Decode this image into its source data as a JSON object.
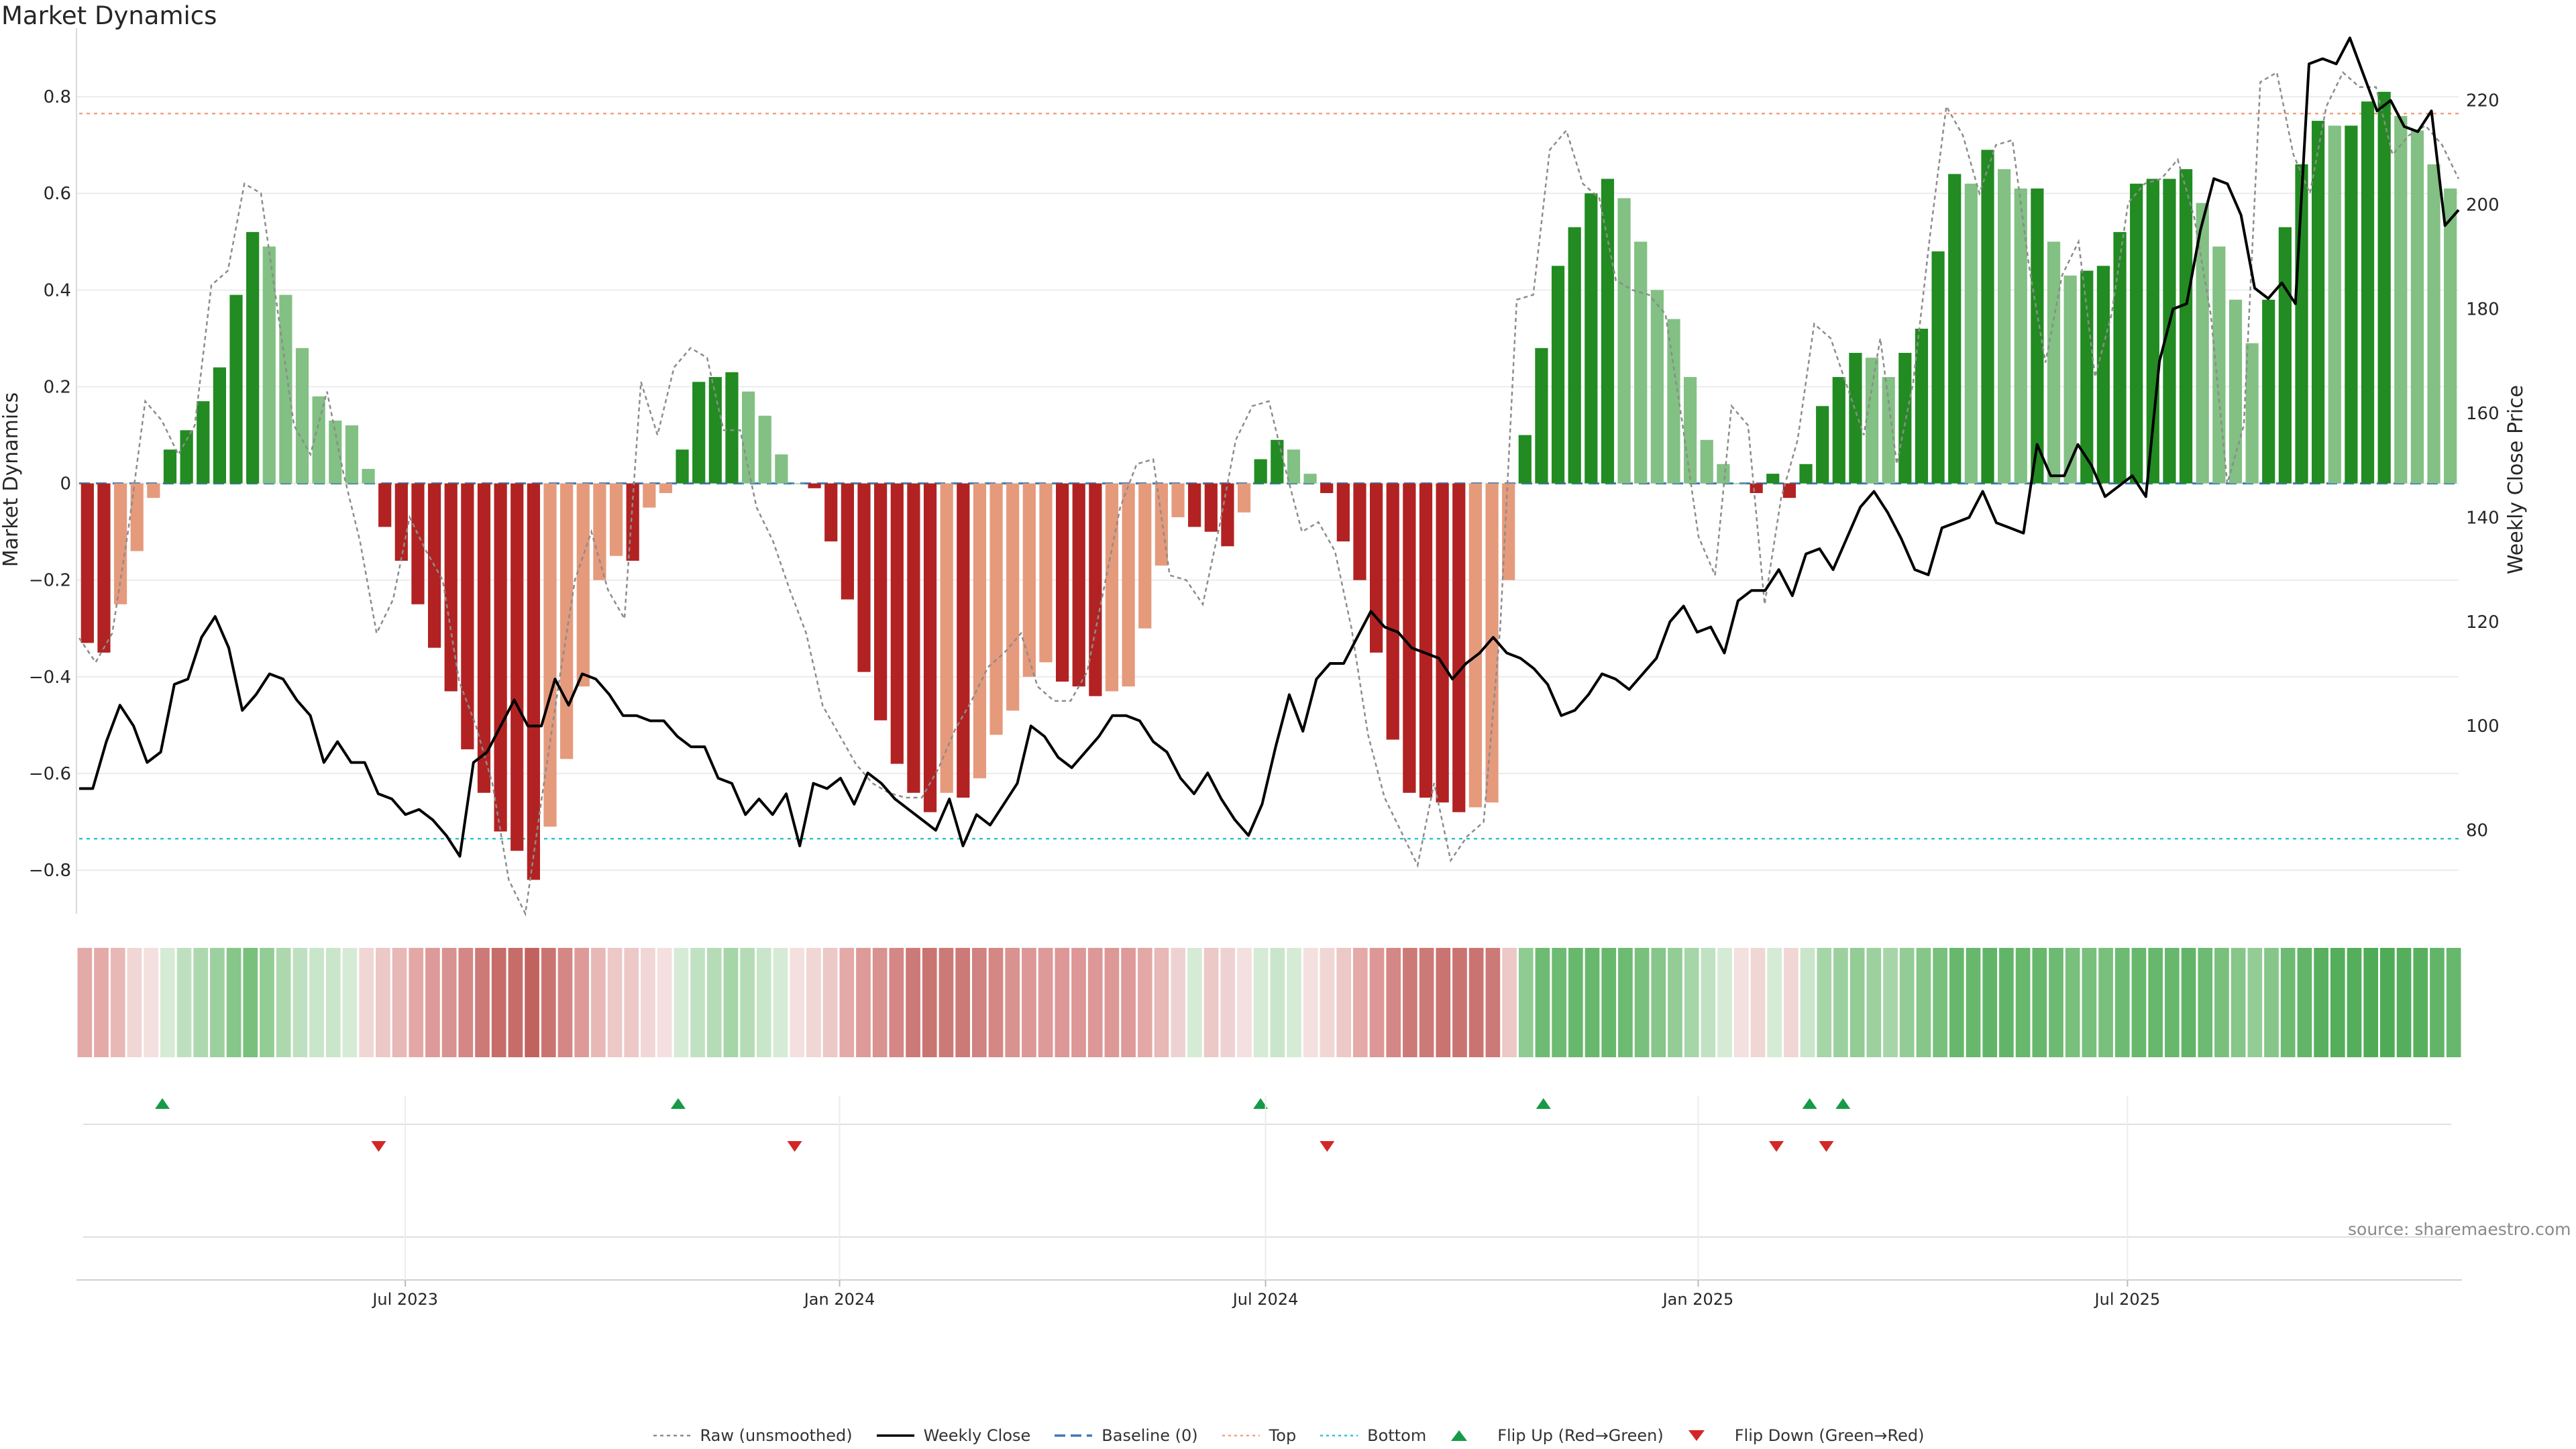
{
  "title": "Market Dynamics",
  "source": "source: sharemaestro.com",
  "colors": {
    "green_dark": "#228b22",
    "green_light": "#82c083",
    "red_dark": "#b22222",
    "red_light": "#e59a7c",
    "close": "#000000",
    "raw": "#8c8c8c",
    "baseline": "#3e78b4",
    "top": "#f1a37d",
    "bottom": "#2ec5cf",
    "flip_up": "#169a48",
    "flip_down": "#d42626"
  },
  "legend": [
    {
      "key": "raw",
      "label": "Raw (unsmoothed)"
    },
    {
      "key": "close",
      "label": "Weekly Close"
    },
    {
      "key": "baseline",
      "label": "Baseline (0)"
    },
    {
      "key": "top",
      "label": "Top"
    },
    {
      "key": "bottom",
      "label": "Bottom"
    },
    {
      "key": "flip_up",
      "label": "Flip Up (Red→Green)"
    },
    {
      "key": "flip_down",
      "label": "Flip Down (Green→Red)"
    }
  ],
  "chart_data": {
    "type": "bar",
    "title": "Market Dynamics",
    "ylabel": "Market Dynamics",
    "y2label": "Weekly Close Price",
    "ylim": [
      -0.89,
      0.9
    ],
    "y2lim": [
      64,
      230
    ],
    "yticks": [
      "0.8",
      "0.6",
      "0.4",
      "0.2",
      "0",
      "−0.2",
      "−0.4",
      "−0.6",
      "−0.8"
    ],
    "yticks_values": [
      0.8,
      0.6,
      0.4,
      0.2,
      0,
      -0.2,
      -0.4,
      -0.6,
      -0.8
    ],
    "y2ticks": [
      "220",
      "200",
      "180",
      "160",
      "140",
      "120",
      "100",
      "80"
    ],
    "y2ticks_values": [
      220,
      200,
      180,
      160,
      140,
      120,
      100,
      80
    ],
    "top_level": 0.765,
    "bottom_level": -0.735,
    "baseline": 0,
    "xticks": [
      "Jul 2023",
      "Jan 2024",
      "Jul 2024",
      "Jan 2025",
      "Jul 2025"
    ],
    "xticks_index": [
      19.6,
      45.7,
      71.3,
      97.3,
      123.1
    ],
    "bars": [
      -0.33,
      -0.35,
      -0.25,
      -0.14,
      -0.03,
      0.07,
      0.11,
      0.17,
      0.24,
      0.39,
      0.52,
      0.49,
      0.39,
      0.28,
      0.18,
      0.13,
      0.12,
      0.03,
      -0.09,
      -0.16,
      -0.25,
      -0.34,
      -0.43,
      -0.55,
      -0.64,
      -0.72,
      -0.76,
      -0.82,
      -0.71,
      -0.57,
      -0.42,
      -0.2,
      -0.15,
      -0.16,
      -0.05,
      -0.02,
      0.07,
      0.21,
      0.22,
      0.23,
      0.19,
      0.14,
      0.06,
      0.0,
      -0.01,
      -0.12,
      -0.24,
      -0.39,
      -0.49,
      -0.58,
      -0.64,
      -0.68,
      -0.64,
      -0.65,
      -0.61,
      -0.52,
      -0.47,
      -0.4,
      -0.37,
      -0.41,
      -0.42,
      -0.44,
      -0.43,
      -0.42,
      -0.3,
      -0.17,
      -0.07,
      -0.09,
      -0.1,
      -0.13,
      -0.06,
      0.05,
      0.09,
      0.07,
      0.02,
      -0.02,
      -0.12,
      -0.2,
      -0.35,
      -0.53,
      -0.64,
      -0.65,
      -0.66,
      -0.68,
      -0.67,
      -0.66,
      -0.2,
      0.1,
      0.28,
      0.45,
      0.53,
      0.6,
      0.63,
      0.59,
      0.5,
      0.4,
      0.34,
      0.22,
      0.09,
      0.04,
      0.0,
      -0.02,
      0.02,
      -0.03,
      0.04,
      0.16,
      0.22,
      0.27,
      0.26,
      0.22,
      0.27,
      0.32,
      0.48,
      0.64,
      0.62,
      0.69,
      0.65,
      0.61,
      0.61,
      0.5,
      0.43,
      0.44,
      0.45,
      0.52,
      0.62,
      0.63,
      0.63,
      0.65,
      0.58,
      0.49,
      0.38,
      0.29,
      0.38,
      0.53,
      0.66,
      0.75,
      0.74,
      0.74,
      0.79,
      0.81,
      0.76,
      0.73,
      0.66,
      0.61
    ],
    "raw": [
      -0.32,
      -0.37,
      -0.31,
      -0.09,
      0.17,
      0.13,
      0.06,
      0.12,
      0.41,
      0.44,
      0.62,
      0.6,
      0.36,
      0.12,
      0.06,
      0.19,
      0.02,
      -0.12,
      -0.31,
      -0.24,
      -0.07,
      -0.14,
      -0.2,
      -0.41,
      -0.5,
      -0.62,
      -0.82,
      -0.89,
      -0.65,
      -0.42,
      -0.2,
      -0.1,
      -0.22,
      -0.28,
      0.21,
      0.1,
      0.24,
      0.28,
      0.26,
      0.11,
      0.11,
      -0.05,
      -0.12,
      -0.22,
      -0.31,
      -0.46,
      -0.52,
      -0.58,
      -0.62,
      -0.64,
      -0.65,
      -0.65,
      -0.59,
      -0.51,
      -0.45,
      -0.38,
      -0.35,
      -0.31,
      -0.42,
      -0.45,
      -0.45,
      -0.39,
      -0.22,
      -0.05,
      0.04,
      0.05,
      -0.19,
      -0.2,
      -0.25,
      -0.09,
      0.09,
      0.16,
      0.17,
      0.03,
      -0.1,
      -0.08,
      -0.14,
      -0.3,
      -0.52,
      -0.65,
      -0.72,
      -0.79,
      -0.62,
      -0.78,
      -0.73,
      -0.7,
      -0.3,
      0.38,
      0.39,
      0.69,
      0.73,
      0.62,
      0.59,
      0.42,
      0.4,
      0.39,
      0.35,
      0.13,
      -0.11,
      -0.19,
      0.16,
      0.12,
      -0.25,
      -0.03,
      0.09,
      0.33,
      0.3,
      0.2,
      0.1,
      0.3,
      0.04,
      0.21,
      0.51,
      0.78,
      0.72,
      0.6,
      0.7,
      0.71,
      0.45,
      0.25,
      0.43,
      0.5,
      0.22,
      0.35,
      0.58,
      0.62,
      0.63,
      0.67,
      0.55,
      0.35,
      0.0,
      0.12,
      0.83,
      0.85,
      0.68,
      0.6,
      0.78,
      0.85,
      0.82,
      0.82,
      0.68,
      0.72,
      0.74,
      0.7,
      0.63
    ],
    "close": [
      88,
      88,
      97,
      104,
      100,
      93,
      95,
      108,
      109,
      117,
      121,
      115,
      103,
      106,
      110,
      109,
      105,
      102,
      93,
      97,
      93,
      93,
      87,
      86,
      83,
      84,
      82,
      79,
      75,
      93,
      95,
      100,
      105,
      100,
      100,
      109,
      104,
      110,
      109,
      106,
      102,
      102,
      101,
      101,
      98,
      96,
      96,
      90,
      89,
      83,
      86,
      83,
      87,
      77,
      89,
      88,
      90,
      85,
      91,
      89,
      86,
      84,
      82,
      80,
      86,
      77,
      83,
      81,
      85,
      89,
      100,
      98,
      94,
      92,
      95,
      98,
      102,
      102,
      101,
      97,
      95,
      90,
      87,
      91,
      86,
      82,
      79,
      85,
      96,
      106,
      99,
      109,
      112,
      112,
      117,
      122,
      119,
      118,
      115,
      114,
      113,
      109,
      112,
      114,
      117,
      114,
      113,
      111,
      108,
      102,
      103,
      106,
      110,
      109,
      107,
      110,
      113,
      120,
      123,
      118,
      119,
      114,
      124,
      126,
      126,
      130,
      125,
      133,
      134,
      130,
      136,
      142,
      145,
      141,
      136,
      130,
      129,
      138,
      139,
      140,
      145,
      139,
      138,
      137,
      154,
      148,
      148,
      154,
      150,
      144,
      146,
      148,
      144,
      170,
      180,
      181,
      195,
      205,
      204,
      198,
      184,
      182,
      185,
      181,
      227,
      228,
      227,
      232,
      225,
      218,
      220,
      215,
      214,
      218,
      196,
      199
    ],
    "strip_colors": [
      "#e4aaa8",
      "#e4aaa8",
      "#e8b8b6",
      "#f0d6d4",
      "#f4e0df",
      "#d6ebd5",
      "#bfe0c0",
      "#add8ae",
      "#9dd09f",
      "#86c689",
      "#78c07c",
      "#93cc95",
      "#add8ae",
      "#bfe0c0",
      "#c9e5ca",
      "#c9e5ca",
      "#d6ebd5",
      "#f0d6d4",
      "#ecc8c7",
      "#e8b8b6",
      "#e3a8a6",
      "#dd9a98",
      "#d89290",
      "#d48784",
      "#cc7a77",
      "#c66d6a",
      "#c66d6a",
      "#c1625f",
      "#ca7471",
      "#d48784",
      "#dd9a98",
      "#e8b8b6",
      "#ecc8c7",
      "#ecc8c7",
      "#f0d6d4",
      "#f4e0df",
      "#d6ebd5",
      "#c0e2c2",
      "#b5dcb6",
      "#a6d5a8",
      "#b5dcb6",
      "#c9e5ca",
      "#d6ebd5",
      "#f4e0df",
      "#f0d6d4",
      "#ecc8c7",
      "#e4aaa8",
      "#dd9a98",
      "#d89290",
      "#d48784",
      "#cc7a77",
      "#ca7471",
      "#cc7a77",
      "#cc7a77",
      "#d08380",
      "#d48784",
      "#d89290",
      "#dc9796",
      "#dd9a98",
      "#dc9796",
      "#dc9796",
      "#dc9796",
      "#dc9796",
      "#dd9a98",
      "#e3a8a6",
      "#e8b8b6",
      "#eed2d1",
      "#d6ebd5",
      "#ecc8c7",
      "#eed2d1",
      "#f4e0df",
      "#d6ebd5",
      "#c9e5ca",
      "#d6ebd5",
      "#f4e0df",
      "#f0d6d4",
      "#ecc8c7",
      "#e4aaa8",
      "#dc9796",
      "#d48784",
      "#cc7a77",
      "#cc7a77",
      "#ca7471",
      "#ca7471",
      "#ca7471",
      "#cc7a77",
      "#ecc8c7",
      "#8fcc92",
      "#6dbb72",
      "#6dbb72",
      "#67b86c",
      "#67b86c",
      "#67b86c",
      "#6dbb72",
      "#78c07c",
      "#86c689",
      "#93cc95",
      "#a6d5a8",
      "#c0e2c2",
      "#d6ebd5",
      "#f4e0df",
      "#f0d6d4",
      "#d6ebd5",
      "#f0d6d4",
      "#c9e5ca",
      "#a6d5a8",
      "#9dd09f",
      "#93cc95",
      "#9dd09f",
      "#a6d5a8",
      "#93cc95",
      "#86c689",
      "#78c07c",
      "#67b86c",
      "#67b86c",
      "#62b568",
      "#62b568",
      "#67b86c",
      "#67b86c",
      "#6dbb72",
      "#78c07c",
      "#78c07c",
      "#78c07c",
      "#6dbb72",
      "#67b86c",
      "#67b86c",
      "#67b86c",
      "#62b568",
      "#6dbb72",
      "#78c07c",
      "#86c689",
      "#93cc95",
      "#86c689",
      "#6dbb72",
      "#62b568",
      "#58b05f",
      "#55ae5c",
      "#55ae5c",
      "#50ab57",
      "#50ab57",
      "#55ae5c",
      "#58b05f",
      "#62b568",
      "#67b86c"
    ],
    "flip_up_index": [
      5,
      36,
      71,
      88,
      104,
      106
    ],
    "flip_down_index": [
      18,
      43,
      75,
      102,
      105
    ]
  }
}
